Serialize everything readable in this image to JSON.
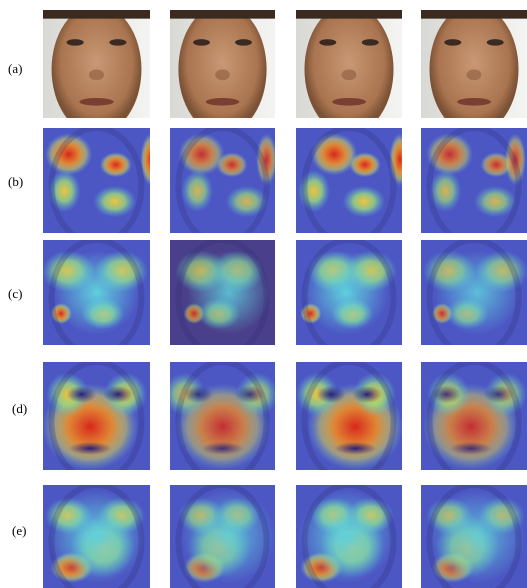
{
  "rows": [
    {
      "label": "(a)"
    },
    {
      "label": "(b)"
    },
    {
      "label": "(c)"
    },
    {
      "label": "(d)"
    },
    {
      "label": "(e)"
    }
  ]
}
